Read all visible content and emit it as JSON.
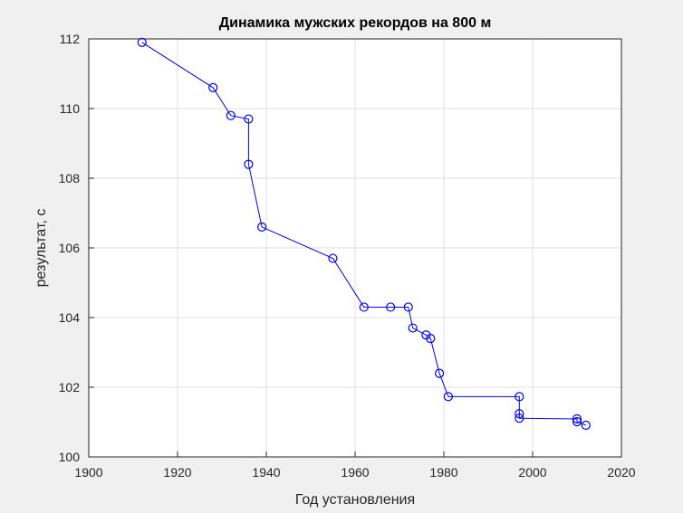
{
  "chart_data": {
    "type": "line",
    "title": "Динамика мужских рекордов на 800 м",
    "xlabel": "Год установления",
    "ylabel": "результат, с",
    "xlim": [
      1900,
      2020
    ],
    "ylim": [
      100,
      112
    ],
    "xticks": [
      1900,
      1920,
      1940,
      1960,
      1980,
      2000,
      2020
    ],
    "yticks": [
      100,
      102,
      104,
      106,
      108,
      110,
      112
    ],
    "grid": true,
    "legend": "none",
    "series": [
      {
        "color": "#0000ff",
        "marker": "circle",
        "x": [
          1912,
          1928,
          1932,
          1936,
          1936,
          1939,
          1955,
          1962,
          1968,
          1972,
          1973,
          1976,
          1977,
          1979,
          1981,
          1997,
          1997,
          1997,
          2010,
          2010,
          2012
        ],
        "y": [
          111.9,
          110.6,
          109.8,
          109.7,
          108.4,
          106.6,
          105.7,
          104.3,
          104.3,
          104.3,
          103.7,
          103.5,
          103.4,
          102.4,
          101.73,
          101.73,
          101.24,
          101.11,
          101.09,
          101.01,
          100.91
        ]
      }
    ]
  }
}
